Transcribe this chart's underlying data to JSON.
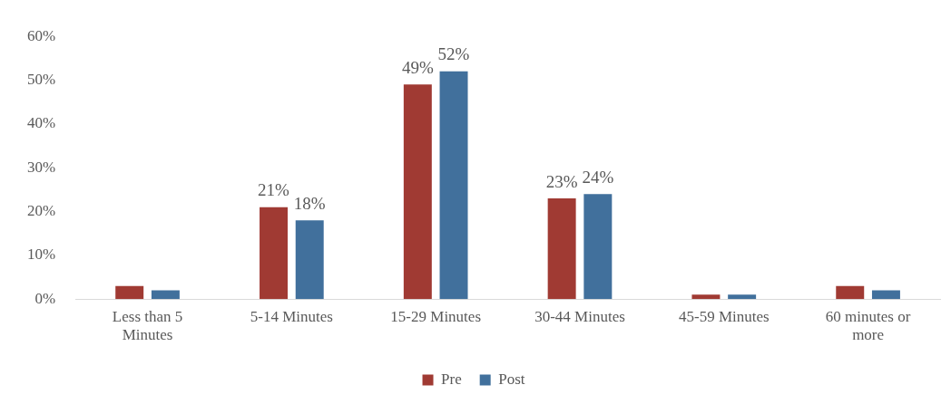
{
  "chart_data": {
    "type": "bar",
    "categories": [
      "Less than 5 Minutes",
      "5-14 Minutes",
      "15-29 Minutes",
      "30-44 Minutes",
      "45-59 Minutes",
      "60 minutes or more"
    ],
    "series": [
      {
        "name": "Pre",
        "color": "#a03a33",
        "values": [
          3,
          21,
          49,
          23,
          1,
          3
        ],
        "value_labels": [
          null,
          "21%",
          "49%",
          "23%",
          null,
          null
        ]
      },
      {
        "name": "Post",
        "color": "#41709c",
        "values": [
          2,
          18,
          52,
          24,
          1,
          2
        ],
        "value_labels": [
          null,
          "18%",
          "52%",
          "24%",
          null,
          null
        ]
      }
    ],
    "ylim": [
      0,
      60
    ],
    "yticks": [
      {
        "value": 0,
        "label": "0%"
      },
      {
        "value": 10,
        "label": "10%"
      },
      {
        "value": 20,
        "label": "20%"
      },
      {
        "value": 30,
        "label": "30%"
      },
      {
        "value": 40,
        "label": "40%"
      },
      {
        "value": 50,
        "label": "50%"
      },
      {
        "value": 60,
        "label": "60%"
      }
    ],
    "grid": false,
    "legend": "bottom"
  }
}
